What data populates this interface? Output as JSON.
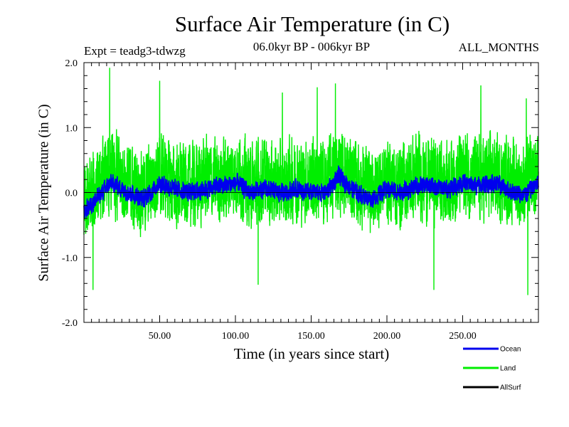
{
  "chart_data": {
    "type": "line",
    "title": "Surface Air Temperature (in C)",
    "experiment": "Expt = teadg3-tdwzg",
    "period": "06.0kyr BP - 006kyr BP",
    "months": "ALL_MONTHS",
    "xlabel": "Time (in years since start)",
    "ylabel": "Surface Air Temperature (in C)",
    "xlim": [
      0,
      300
    ],
    "ylim": [
      -2.0,
      2.0
    ],
    "x_ticks": [
      50,
      100,
      150,
      200,
      250
    ],
    "x_tick_labels": [
      "50.00",
      "100.00",
      "150.00",
      "200.00",
      "250.00"
    ],
    "y_ticks": [
      -2.0,
      -1.0,
      0.0,
      1.0,
      2.0
    ],
    "y_tick_labels": [
      "-2.0",
      "-1.0",
      "0.0",
      "1.0",
      "2.0"
    ],
    "samples_per_year": 12,
    "series": [
      {
        "name": "Land",
        "color": "#00ee00",
        "anchors_x": [
          0,
          10,
          18,
          30,
          40,
          50,
          60,
          70,
          80,
          90,
          100,
          110,
          120,
          130,
          140,
          150,
          160,
          168,
          180,
          190,
          200,
          210,
          220,
          230,
          240,
          250,
          260,
          270,
          280,
          290,
          300
        ],
        "anchors_y": [
          -0.1,
          0.15,
          0.3,
          0.1,
          0.0,
          0.3,
          0.1,
          0.1,
          0.2,
          0.15,
          0.3,
          0.1,
          0.2,
          0.1,
          0.2,
          0.2,
          0.15,
          0.35,
          0.15,
          0.0,
          0.2,
          0.1,
          0.25,
          0.2,
          0.15,
          0.3,
          0.2,
          0.25,
          0.2,
          0.1,
          0.3
        ],
        "amplitude": 0.55,
        "extremes": [
          [
            17,
            1.92
          ],
          [
            50,
            1.72
          ],
          [
            131,
            1.54
          ],
          [
            154,
            1.62
          ],
          [
            166,
            1.68
          ],
          [
            262,
            1.65
          ],
          [
            292,
            1.45
          ],
          [
            6,
            -1.5
          ],
          [
            115,
            -1.42
          ],
          [
            231,
            -1.5
          ],
          [
            293,
            -1.58
          ]
        ]
      },
      {
        "name": "Ocean",
        "color": "#0000ee",
        "anchors_x": [
          0,
          10,
          18,
          30,
          40,
          50,
          60,
          70,
          80,
          90,
          100,
          110,
          120,
          130,
          140,
          150,
          160,
          168,
          180,
          190,
          200,
          210,
          220,
          230,
          240,
          250,
          260,
          270,
          280,
          290,
          300
        ],
        "anchors_y": [
          -0.3,
          -0.05,
          0.15,
          0.0,
          -0.1,
          0.15,
          0.05,
          0.0,
          0.05,
          0.1,
          0.15,
          0.0,
          0.05,
          0.0,
          0.05,
          0.0,
          0.0,
          0.25,
          0.0,
          -0.1,
          0.05,
          0.0,
          0.1,
          0.1,
          0.05,
          0.15,
          0.1,
          0.15,
          0.05,
          -0.05,
          0.15
        ],
        "amplitude": 0.12
      },
      {
        "name": "AllSurf",
        "color": "#000000"
      }
    ]
  }
}
